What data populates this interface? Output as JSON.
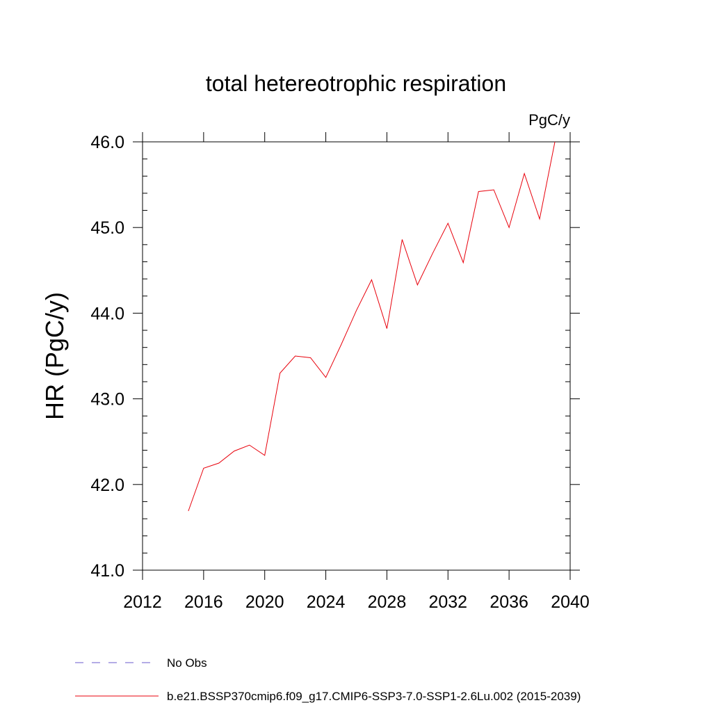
{
  "chart_data": {
    "type": "line",
    "title": "total hetereotrophic respiration",
    "units_label": "PgC/y",
    "ylabel": "HR  (PgC/y)",
    "xlabel": "",
    "xlim": [
      2012,
      2040
    ],
    "ylim": [
      41.0,
      46.0
    ],
    "x_ticks": [
      2012,
      2016,
      2020,
      2024,
      2028,
      2032,
      2036,
      2040
    ],
    "y_ticks": [
      "41.0",
      "42.0",
      "43.0",
      "44.0",
      "45.0",
      "46.0"
    ],
    "grid": false,
    "legend_position": "bottom-left",
    "series": [
      {
        "name": "b.e21.BSSP370cmip6.f09_g17.CMIP6-SSP3-7.0-SSP1-2.6Lu.002 (2015-2039)",
        "color": "#e8000b",
        "x": [
          2015,
          2016,
          2017,
          2018,
          2019,
          2020,
          2021,
          2022,
          2023,
          2024,
          2025,
          2026,
          2027,
          2028,
          2029,
          2030,
          2031,
          2032,
          2033,
          2034,
          2035,
          2036,
          2037,
          2038,
          2039
        ],
        "y": [
          41.69,
          42.19,
          42.25,
          42.39,
          42.46,
          42.34,
          43.3,
          43.5,
          43.48,
          43.25,
          43.63,
          44.03,
          44.39,
          43.82,
          44.86,
          44.33,
          44.7,
          45.05,
          44.59,
          45.42,
          45.44,
          45.0,
          45.63,
          45.1,
          46.0
        ]
      }
    ],
    "legend": [
      {
        "label": "No Obs",
        "color": "#6a5acd",
        "style": "dashed"
      },
      {
        "label": "b.e21.BSSP370cmip6.f09_g17.CMIP6-SSP3-7.0-SSP1-2.6Lu.002 (2015-2039)",
        "color": "#e8000b",
        "style": "solid"
      }
    ]
  }
}
